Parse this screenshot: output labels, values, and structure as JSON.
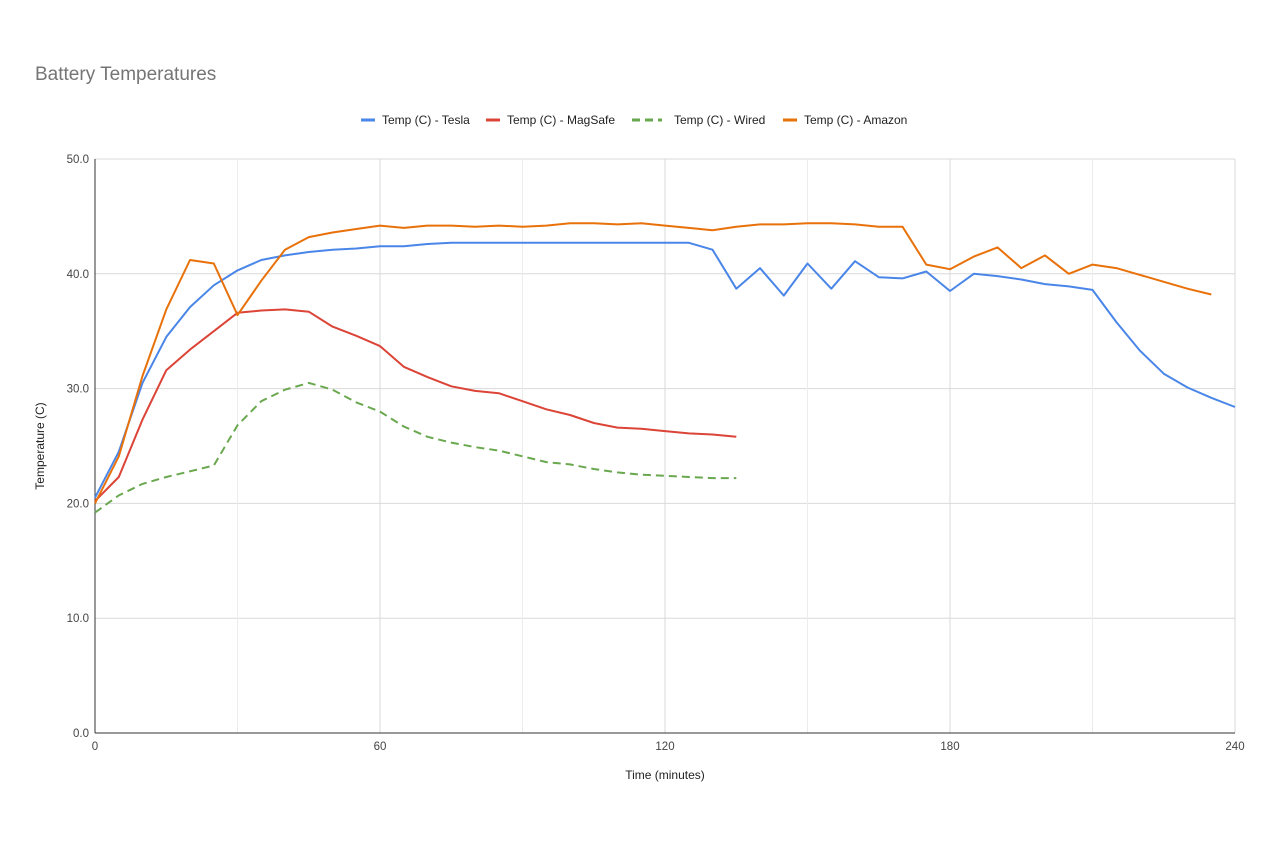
{
  "chart_data": {
    "type": "line",
    "title": "Battery Temperatures",
    "xlabel": "Time (minutes)",
    "ylabel": "Temperature (C)",
    "xlim": [
      0,
      240
    ],
    "ylim": [
      0,
      50
    ],
    "x_ticks": [
      0,
      60,
      120,
      180,
      240
    ],
    "y_ticks": [
      0,
      10,
      20,
      30,
      40,
      50
    ],
    "x_tick_labels": [
      "0",
      "60",
      "120",
      "180",
      "240"
    ],
    "y_tick_labels": [
      "0.0",
      "10.0",
      "20.0",
      "30.0",
      "40.0",
      "50.0"
    ],
    "grid": true,
    "legend_position": "top",
    "series": [
      {
        "name": "Temp (C) - Tesla",
        "color": "#4a86e8",
        "dashed": false,
        "points": [
          [
            0,
            20.5
          ],
          [
            5,
            24.5
          ],
          [
            10,
            30.5
          ],
          [
            15,
            34.5
          ],
          [
            20,
            37.1
          ],
          [
            25,
            39.0
          ],
          [
            30,
            40.3
          ],
          [
            35,
            41.2
          ],
          [
            40,
            41.6
          ],
          [
            45,
            41.9
          ],
          [
            50,
            42.1
          ],
          [
            55,
            42.2
          ],
          [
            60,
            42.4
          ],
          [
            65,
            42.4
          ],
          [
            70,
            42.6
          ],
          [
            75,
            42.7
          ],
          [
            80,
            42.7
          ],
          [
            85,
            42.7
          ],
          [
            90,
            42.7
          ],
          [
            95,
            42.7
          ],
          [
            100,
            42.7
          ],
          [
            105,
            42.7
          ],
          [
            110,
            42.7
          ],
          [
            115,
            42.7
          ],
          [
            120,
            42.7
          ],
          [
            125,
            42.7
          ],
          [
            130,
            42.1
          ],
          [
            135,
            38.7
          ],
          [
            140,
            40.5
          ],
          [
            145,
            38.1
          ],
          [
            150,
            40.9
          ],
          [
            155,
            38.7
          ],
          [
            160,
            41.1
          ],
          [
            165,
            39.7
          ],
          [
            170,
            39.6
          ],
          [
            175,
            40.2
          ],
          [
            180,
            38.5
          ],
          [
            185,
            40.0
          ],
          [
            190,
            39.8
          ],
          [
            195,
            39.5
          ],
          [
            200,
            39.1
          ],
          [
            205,
            38.9
          ],
          [
            210,
            38.6
          ],
          [
            215,
            35.8
          ],
          [
            220,
            33.3
          ],
          [
            225,
            31.3
          ],
          [
            230,
            30.1
          ],
          [
            235,
            29.2
          ],
          [
            240,
            28.4
          ]
        ]
      },
      {
        "name": "Temp (C) - MagSafe",
        "color": "#db4437",
        "dashed": false,
        "points": [
          [
            0,
            20.2
          ],
          [
            5,
            22.3
          ],
          [
            10,
            27.3
          ],
          [
            15,
            31.6
          ],
          [
            20,
            33.4
          ],
          [
            25,
            35.0
          ],
          [
            30,
            36.6
          ],
          [
            35,
            36.8
          ],
          [
            40,
            36.9
          ],
          [
            45,
            36.7
          ],
          [
            50,
            35.4
          ],
          [
            55,
            34.6
          ],
          [
            60,
            33.7
          ],
          [
            65,
            31.9
          ],
          [
            70,
            31.0
          ],
          [
            75,
            30.2
          ],
          [
            80,
            29.8
          ],
          [
            85,
            29.6
          ],
          [
            90,
            28.9
          ],
          [
            95,
            28.2
          ],
          [
            100,
            27.7
          ],
          [
            105,
            27.0
          ],
          [
            110,
            26.6
          ],
          [
            115,
            26.5
          ],
          [
            120,
            26.3
          ],
          [
            125,
            26.1
          ],
          [
            130,
            26.0
          ],
          [
            135,
            25.8
          ]
        ]
      },
      {
        "name": "Temp (C) - Wired",
        "color": "#6aa84f",
        "dashed": true,
        "points": [
          [
            0,
            19.2
          ],
          [
            5,
            20.7
          ],
          [
            10,
            21.7
          ],
          [
            15,
            22.3
          ],
          [
            20,
            22.8
          ],
          [
            25,
            23.3
          ],
          [
            30,
            26.8
          ],
          [
            35,
            28.9
          ],
          [
            40,
            29.9
          ],
          [
            45,
            30.5
          ],
          [
            50,
            29.9
          ],
          [
            55,
            28.8
          ],
          [
            60,
            28.0
          ],
          [
            65,
            26.7
          ],
          [
            70,
            25.8
          ],
          [
            75,
            25.3
          ],
          [
            80,
            24.9
          ],
          [
            85,
            24.6
          ],
          [
            90,
            24.1
          ],
          [
            95,
            23.6
          ],
          [
            100,
            23.4
          ],
          [
            105,
            23.0
          ],
          [
            110,
            22.7
          ],
          [
            115,
            22.5
          ],
          [
            120,
            22.4
          ],
          [
            125,
            22.3
          ],
          [
            130,
            22.2
          ],
          [
            135,
            22.2
          ]
        ]
      },
      {
        "name": "Temp (C) - Amazon",
        "color": "#e8710a",
        "dashed": false,
        "points": [
          [
            0,
            20.0
          ],
          [
            5,
            24.1
          ],
          [
            10,
            31.1
          ],
          [
            15,
            36.9
          ],
          [
            20,
            41.2
          ],
          [
            25,
            40.9
          ],
          [
            30,
            36.4
          ],
          [
            35,
            39.4
          ],
          [
            40,
            42.1
          ],
          [
            45,
            43.2
          ],
          [
            50,
            43.6
          ],
          [
            55,
            43.9
          ],
          [
            60,
            44.2
          ],
          [
            65,
            44.0
          ],
          [
            70,
            44.2
          ],
          [
            75,
            44.2
          ],
          [
            80,
            44.1
          ],
          [
            85,
            44.2
          ],
          [
            90,
            44.1
          ],
          [
            95,
            44.2
          ],
          [
            100,
            44.4
          ],
          [
            105,
            44.4
          ],
          [
            110,
            44.3
          ],
          [
            115,
            44.4
          ],
          [
            120,
            44.2
          ],
          [
            125,
            44.0
          ],
          [
            130,
            43.8
          ],
          [
            135,
            44.1
          ],
          [
            140,
            44.3
          ],
          [
            145,
            44.3
          ],
          [
            150,
            44.4
          ],
          [
            155,
            44.4
          ],
          [
            160,
            44.3
          ],
          [
            165,
            44.1
          ],
          [
            170,
            44.1
          ],
          [
            175,
            40.8
          ],
          [
            180,
            40.4
          ],
          [
            185,
            41.5
          ],
          [
            190,
            42.3
          ],
          [
            195,
            40.5
          ],
          [
            200,
            41.6
          ],
          [
            205,
            40.0
          ],
          [
            210,
            40.8
          ],
          [
            215,
            40.5
          ],
          [
            220,
            39.9
          ],
          [
            225,
            39.3
          ],
          [
            230,
            38.7
          ],
          [
            235,
            38.2
          ]
        ]
      }
    ]
  }
}
